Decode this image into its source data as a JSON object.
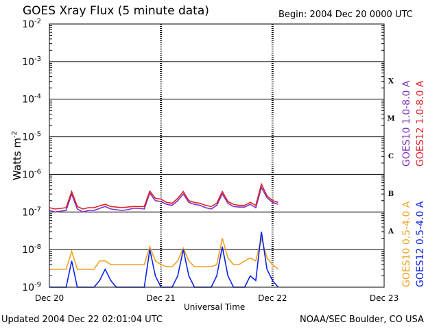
{
  "header": {
    "title": "GOES Xray Flux (5 minute data)",
    "begin": "Begin:  2004 Dec 20 0000 UTC"
  },
  "footer": {
    "updated": "Updated 2004 Dec 22 02:01:04 UTC",
    "credit": "NOAA/SEC Boulder, CO USA"
  },
  "colors": {
    "goes10_long": "#7a2fbf",
    "goes12_long": "#e0202a",
    "goes10_short": "#f0a020",
    "goes12_short": "#0a22e6"
  },
  "chart_data": {
    "type": "line",
    "title": "GOES Xray Flux (5 minute data)",
    "xlabel": "Universal Time",
    "ylabel": "Watts m",
    "ylabel_sup": "-2",
    "yscale": "log",
    "ylim": [
      1e-09,
      0.01
    ],
    "xlim_days": [
      0,
      3
    ],
    "x_ticks": [
      "Dec 20",
      "Dec 21",
      "Dec 22",
      "Dec 23"
    ],
    "y_ticks": [
      {
        "base": "10",
        "exp": "-2"
      },
      {
        "base": "10",
        "exp": "-3"
      },
      {
        "base": "10",
        "exp": "-4"
      },
      {
        "base": "10",
        "exp": "-5"
      },
      {
        "base": "10",
        "exp": "-6"
      },
      {
        "base": "10",
        "exp": "-7"
      },
      {
        "base": "10",
        "exp": "-8"
      },
      {
        "base": "10",
        "exp": "-9"
      }
    ],
    "flare_classes": [
      "X",
      "M",
      "C",
      "B",
      "A"
    ],
    "grid": true,
    "series": [
      {
        "name": "GOES10 1.0-8.0 A",
        "color": "#7a2fbf",
        "x": [
          0,
          0.05,
          0.1,
          0.15,
          0.2,
          0.25,
          0.3,
          0.35,
          0.4,
          0.45,
          0.5,
          0.55,
          0.6,
          0.65,
          0.7,
          0.75,
          0.8,
          0.85,
          0.9,
          0.95,
          1.0,
          1.05,
          1.1,
          1.15,
          1.2,
          1.25,
          1.3,
          1.35,
          1.4,
          1.45,
          1.5,
          1.55,
          1.6,
          1.65,
          1.7,
          1.75,
          1.8,
          1.85,
          1.9,
          1.95,
          2.0,
          2.05
        ],
        "y": [
          1.1e-07,
          1e-07,
          1.05e-07,
          1.1e-07,
          3e-07,
          1.2e-07,
          1e-07,
          1.1e-07,
          1.1e-07,
          1.25e-07,
          1.4e-07,
          1.2e-07,
          1.15e-07,
          1.1e-07,
          1.15e-07,
          1.25e-07,
          1.25e-07,
          1.2e-07,
          3.2e-07,
          2e-07,
          1.9e-07,
          1.6e-07,
          1.5e-07,
          2e-07,
          3e-07,
          1.8e-07,
          1.6e-07,
          1.5e-07,
          1.3e-07,
          1.2e-07,
          1.5e-07,
          3e-07,
          1.7e-07,
          1.4e-07,
          1.35e-07,
          1.35e-07,
          1.6e-07,
          1.3e-07,
          4.5e-07,
          2.4e-07,
          1.8e-07,
          1.6e-07
        ]
      },
      {
        "name": "GOES12 1.0-8.0 A",
        "color": "#e0202a",
        "x": [
          0,
          0.05,
          0.1,
          0.15,
          0.2,
          0.25,
          0.3,
          0.35,
          0.4,
          0.45,
          0.5,
          0.55,
          0.6,
          0.65,
          0.7,
          0.75,
          0.8,
          0.85,
          0.9,
          0.95,
          1.0,
          1.05,
          1.1,
          1.15,
          1.2,
          1.25,
          1.3,
          1.35,
          1.4,
          1.45,
          1.5,
          1.55,
          1.6,
          1.65,
          1.7,
          1.75,
          1.8,
          1.85,
          1.9,
          1.95,
          2.0,
          2.05
        ],
        "y": [
          1.3e-07,
          1.2e-07,
          1.25e-07,
          1.3e-07,
          3.5e-07,
          1.4e-07,
          1.2e-07,
          1.3e-07,
          1.3e-07,
          1.45e-07,
          1.6e-07,
          1.4e-07,
          1.35e-07,
          1.3e-07,
          1.35e-07,
          1.4e-07,
          1.4e-07,
          1.4e-07,
          3.6e-07,
          2.3e-07,
          2.2e-07,
          1.8e-07,
          1.7e-07,
          2.3e-07,
          3.5e-07,
          2e-07,
          1.8e-07,
          1.7e-07,
          1.5e-07,
          1.4e-07,
          1.7e-07,
          3.5e-07,
          1.9e-07,
          1.6e-07,
          1.5e-07,
          1.5e-07,
          1.8e-07,
          1.5e-07,
          5.5e-07,
          2.7e-07,
          2e-07,
          1.8e-07
        ]
      },
      {
        "name": "GOES10 0.5-4.0 A",
        "color": "#f0a020",
        "x": [
          0,
          0.05,
          0.1,
          0.15,
          0.2,
          0.25,
          0.3,
          0.35,
          0.4,
          0.45,
          0.5,
          0.55,
          0.6,
          0.65,
          0.7,
          0.75,
          0.8,
          0.85,
          0.9,
          0.95,
          1.0,
          1.05,
          1.1,
          1.15,
          1.2,
          1.25,
          1.3,
          1.35,
          1.4,
          1.45,
          1.5,
          1.55,
          1.6,
          1.65,
          1.7,
          1.75,
          1.8,
          1.85,
          1.9,
          1.95,
          2.0,
          2.05
        ],
        "y": [
          3e-09,
          3e-09,
          3e-09,
          3e-09,
          9e-09,
          3e-09,
          3e-09,
          3e-09,
          3e-09,
          5e-09,
          5e-09,
          4e-09,
          4e-09,
          4e-09,
          4e-09,
          4e-09,
          4e-09,
          4e-09,
          1.2e-08,
          5e-09,
          4e-09,
          3.5e-09,
          3.5e-09,
          5e-09,
          1.1e-08,
          5e-09,
          3.5e-09,
          3.5e-09,
          3.5e-09,
          3.5e-09,
          4e-09,
          2e-08,
          6e-09,
          4e-09,
          4e-09,
          5e-09,
          6e-09,
          5e-09,
          2e-08,
          6e-09,
          4e-09,
          3e-09
        ]
      },
      {
        "name": "GOES12 0.5-4.0 A",
        "color": "#0a22e6",
        "x": [
          0,
          0.05,
          0.1,
          0.15,
          0.2,
          0.25,
          0.3,
          0.35,
          0.4,
          0.45,
          0.5,
          0.55,
          0.6,
          0.65,
          0.7,
          0.75,
          0.8,
          0.85,
          0.9,
          0.95,
          1.0,
          1.05,
          1.1,
          1.15,
          1.2,
          1.25,
          1.3,
          1.35,
          1.4,
          1.45,
          1.5,
          1.55,
          1.6,
          1.65,
          1.7,
          1.75,
          1.8,
          1.85,
          1.9,
          1.95,
          2.0,
          2.05
        ],
        "y": [
          1e-09,
          1e-09,
          1e-09,
          1e-09,
          5e-09,
          1e-09,
          1e-09,
          1e-09,
          1e-09,
          1.5e-09,
          3e-09,
          1.5e-09,
          1e-09,
          1e-09,
          1e-09,
          1e-09,
          1e-09,
          1e-09,
          1e-08,
          2e-09,
          1e-09,
          1e-09,
          1e-09,
          2e-09,
          1e-08,
          2e-09,
          1e-09,
          1e-09,
          1e-09,
          1e-09,
          2e-09,
          1.2e-08,
          2e-09,
          1e-09,
          1e-09,
          1e-09,
          2e-09,
          1.5e-09,
          3e-08,
          3e-09,
          1.5e-09,
          1e-09
        ]
      }
    ]
  }
}
